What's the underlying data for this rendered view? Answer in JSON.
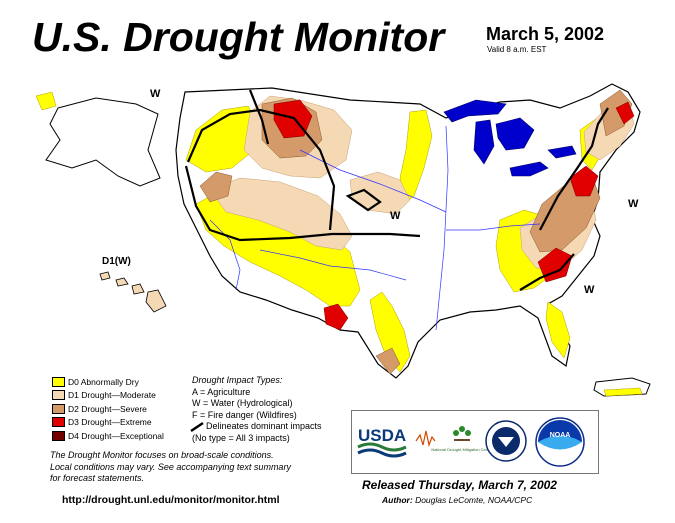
{
  "header": {
    "title": "U.S. Drought Monitor",
    "date": "March 5, 2002",
    "valid": "Valid 8 a.m. EST"
  },
  "map_labels": {
    "w_northwest": "W",
    "w_plains": "W",
    "w_northeast": "W",
    "w_southeast": "W",
    "hawaii": "D1(W)"
  },
  "legend": {
    "items": [
      {
        "label": "D0 Abnormally Dry",
        "color": "#ffff00"
      },
      {
        "label": "D1 Drought—Moderate",
        "color": "#fcd37f"
      },
      {
        "label": "D2 Drought—Severe",
        "color": "#d8a06a"
      },
      {
        "label": "D3 Drought—Extreme",
        "color": "#e00000"
      },
      {
        "label": "D4 Drought—Exceptional",
        "color": "#730000"
      }
    ]
  },
  "impact_types": {
    "header": "Drought Impact Types:",
    "agriculture": "A = Agriculture",
    "water": "W = Water (Hydrological)",
    "fire": "F = Fire danger (Wildfires)",
    "delineates": "Delineates dominant impacts",
    "no_type": "(No type = All 3 impacts)"
  },
  "note": {
    "line1": "The Drought Monitor focuses on broad-scale conditions.",
    "line2": "Local conditions may vary. See accompanying text summary",
    "line3": "for forecast statements."
  },
  "url": "http://drought.unl.edu/monitor/monitor.html",
  "logos": {
    "usda": "USDA",
    "ndmc": "National Drought Mitigation Center",
    "noaa": "NOAA"
  },
  "released": "Released Thursday, March 7, 2002",
  "author_label": "Author:",
  "author_name": "Douglas LeComte, NOAA/CPC",
  "colors": {
    "d0": "#ffff00",
    "d1": "#f5d9b5",
    "d2": "#d49a6a",
    "d3": "#e00000",
    "d4": "#730000",
    "water": "#0000cc",
    "river": "#3333ff"
  }
}
